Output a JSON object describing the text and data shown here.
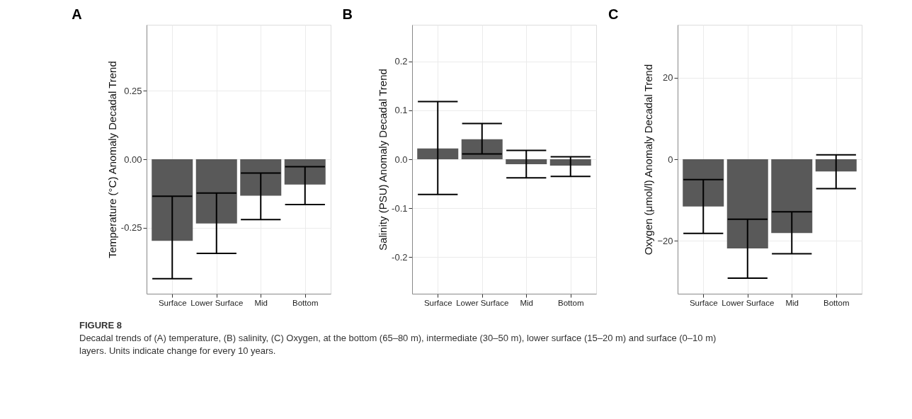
{
  "chart_data": [
    {
      "type": "bar",
      "title": "A",
      "ylabel": "Temperature (°C) Anomaly Decadal Trend",
      "categories": [
        "Surface",
        "Lower Surface",
        "Mid",
        "Bottom"
      ],
      "color": "#595959",
      "values": [
        -0.297,
        -0.234,
        -0.133,
        -0.092
      ],
      "errors": [
        [
          -0.435,
          -0.135
        ],
        [
          -0.343,
          -0.123
        ],
        [
          -0.22,
          -0.05
        ],
        [
          -0.165,
          -0.027
        ]
      ],
      "ylim": [
        -0.49,
        0.49
      ],
      "yticks": [
        {
          "value": 0.25,
          "label": "0.25"
        },
        {
          "value": 0,
          "label": "0.00"
        },
        {
          "value": -0.25,
          "label": "-0.25"
        }
      ],
      "grid": true,
      "annotations": [
        "FIGURE 8",
        "Decadal trends of (A) temperature, (B) salinity, (C) Oxygen, at the bottom (65–80 m), intermediate (30–50 m), lower surface (15–20 m) and surface (0–10 m) layers. Units indicate change for every 10 years."
      ]
    },
    {
      "type": "bar",
      "title": "B",
      "ylabel": "Salinity (PSU) Anomaly Decadal Trend",
      "categories": [
        "Surface",
        "Lower Surface",
        "Mid",
        "Bottom"
      ],
      "color": "#595959",
      "values": [
        0.022,
        0.041,
        -0.01,
        -0.013
      ],
      "errors": [
        [
          -0.072,
          0.118
        ],
        [
          0.011,
          0.073
        ],
        [
          -0.038,
          0.018
        ],
        [
          -0.035,
          0.005
        ]
      ],
      "ylim": [
        -0.275,
        0.275
      ],
      "yticks": [
        {
          "value": 0.2,
          "label": "0.2"
        },
        {
          "value": 0.1,
          "label": "0.1"
        },
        {
          "value": 0,
          "label": "0.0"
        },
        {
          "value": -0.1,
          "label": "-0.1"
        },
        {
          "value": -0.2,
          "label": "-0.2"
        }
      ],
      "grid": true
    },
    {
      "type": "bar",
      "title": "C",
      "ylabel": "Oxygen (μmol/l) Anomaly Decadal Trend",
      "categories": [
        "Surface",
        "Lower Surface",
        "Mid",
        "Bottom"
      ],
      "color": "#595959",
      "values": [
        -11.6,
        -21.9,
        -18.1,
        -3.0
      ],
      "errors": [
        [
          -18.2,
          -5.0
        ],
        [
          -29.2,
          -14.7
        ],
        [
          -23.2,
          -12.9
        ],
        [
          -7.2,
          1.1
        ]
      ],
      "ylim": [
        -33,
        33
      ],
      "yticks": [
        20,
        0,
        -20
      ],
      "grid": true
    }
  ]
}
